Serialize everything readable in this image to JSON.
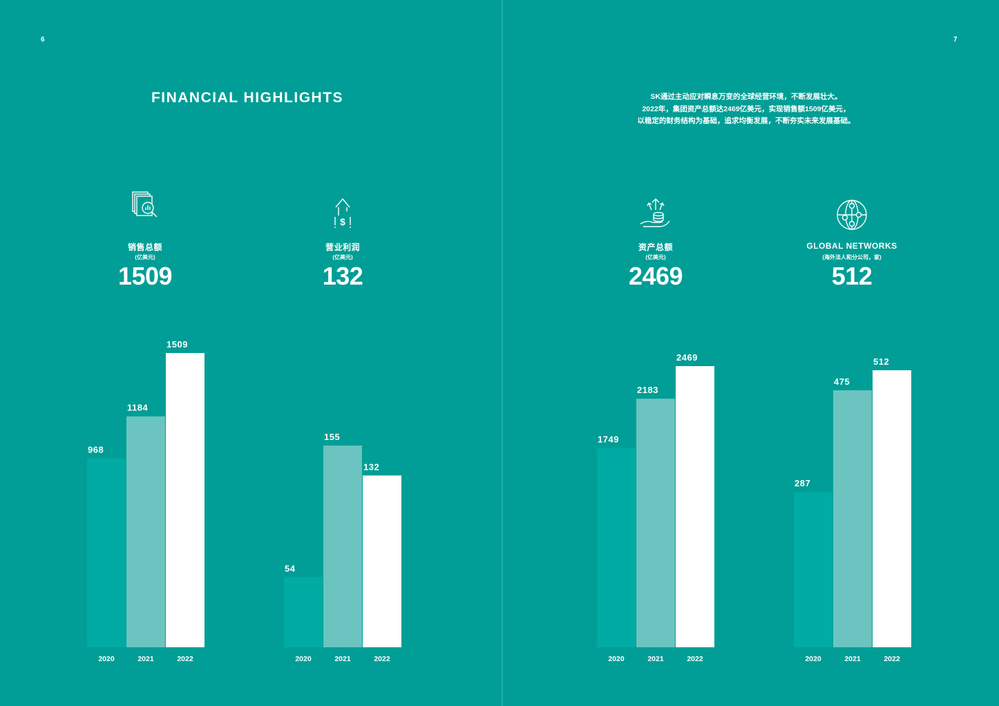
{
  "pages": {
    "left_number": "6",
    "right_number": "7"
  },
  "title": "FINANCIAL HIGHLIGHTS",
  "intro": {
    "lines": [
      "SK通过主动应对瞬息万变的全球经营环境，不断发展壮大。",
      "2022年，集团资产总额达2469亿美元，实现销售额1509亿美元，",
      "以稳定的财务结构为基础，追求均衡发展，不断夯实未来发展基础。"
    ]
  },
  "kpis": [
    {
      "label": "销售总额",
      "unit": "(亿美元)",
      "value": "1509",
      "icon": "document-analytics-icon"
    },
    {
      "label": "营业利润",
      "unit": "(亿美元)",
      "value": "132",
      "icon": "profit-arrow-dollar-icon"
    },
    {
      "label": "资产总额",
      "unit": "(亿美元)",
      "value": "2469",
      "icon": "hand-coins-growth-icon"
    },
    {
      "label": "GLOBAL NETWORKS",
      "unit": "(海外法人和分公司，家)",
      "value": "512",
      "icon": "globe-network-icon"
    }
  ],
  "colors": {
    "background": "#009e96",
    "bar_2020": "#00aba4",
    "bar_2021": "#6bc4c0",
    "bar_2022": "#ffffff"
  },
  "chart_data": [
    {
      "type": "bar",
      "title": "",
      "categories": [
        "2020",
        "2021",
        "2022"
      ],
      "values": [
        968,
        1184,
        1509
      ]
    },
    {
      "type": "bar",
      "title": "",
      "categories": [
        "2020",
        "2021",
        "2022"
      ],
      "values": [
        54,
        155,
        132
      ]
    },
    {
      "type": "bar",
      "title": "",
      "categories": [
        "2020",
        "2021",
        "2022"
      ],
      "values": [
        1749,
        2183,
        2469
      ]
    },
    {
      "type": "bar",
      "title": "",
      "categories": [
        "2020",
        "2021",
        "2022"
      ],
      "values": [
        287,
        475,
        512
      ]
    }
  ]
}
